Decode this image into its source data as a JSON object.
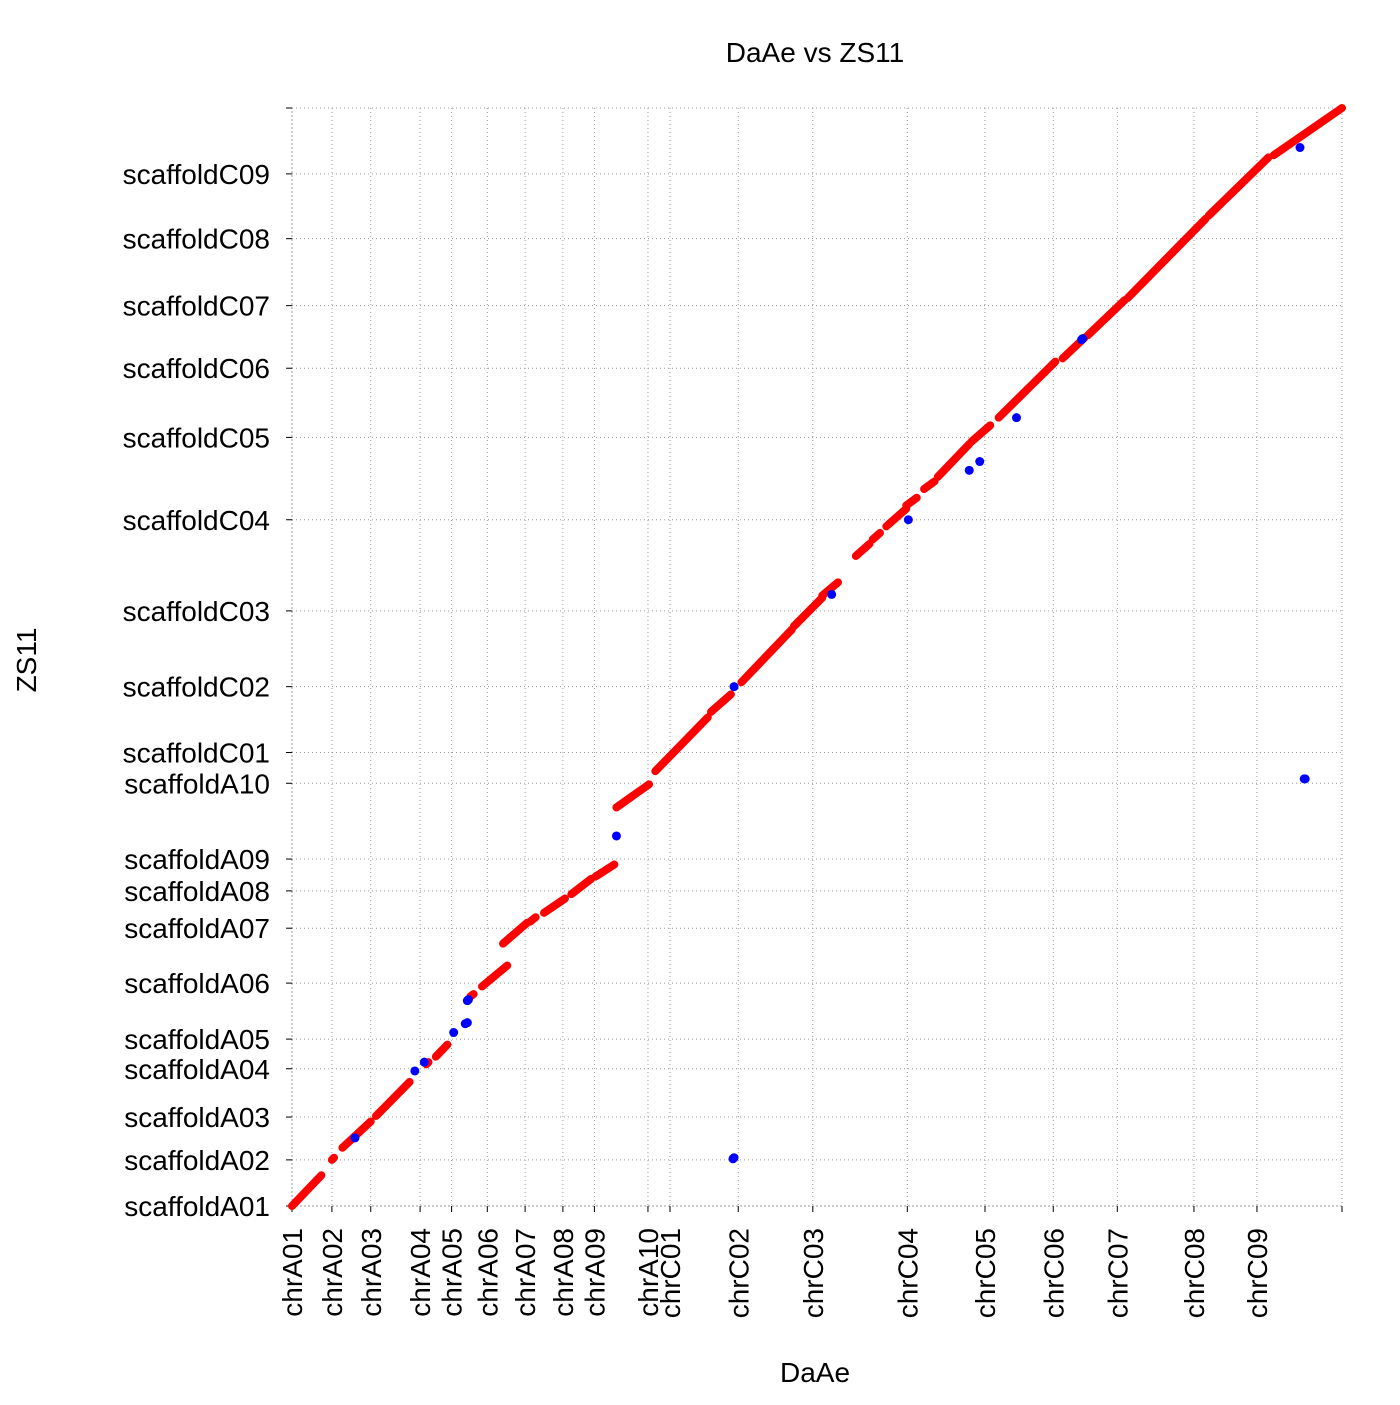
{
  "chart_data": {
    "type": "scatter",
    "title": "DaAe vs ZS11",
    "xlabel": "DaAe",
    "ylabel": "ZS11",
    "xlim": [
      0,
      1000
    ],
    "ylim": [
      0,
      1000
    ],
    "grid": true,
    "legend": "none",
    "colors": {
      "forward": "#ff0000",
      "reverse": "#0000ff"
    },
    "x_ticks": [
      {
        "label": "chrA01",
        "value": 0
      },
      {
        "label": "chrA02",
        "value": 38
      },
      {
        "label": "chrA03",
        "value": 75
      },
      {
        "label": "chrA04",
        "value": 122
      },
      {
        "label": "chrA05",
        "value": 152
      },
      {
        "label": "chrA06",
        "value": 186
      },
      {
        "label": "chrA07",
        "value": 222
      },
      {
        "label": "chrA08",
        "value": 258
      },
      {
        "label": "chrA09",
        "value": 288
      },
      {
        "label": "chrA10",
        "value": 339
      },
      {
        "label": "chrC01",
        "value": 360
      },
      {
        "label": "chrC02",
        "value": 425
      },
      {
        "label": "chrC03",
        "value": 496
      },
      {
        "label": "chrC04",
        "value": 586
      },
      {
        "label": "chrC05",
        "value": 660
      },
      {
        "label": "chrC06",
        "value": 725
      },
      {
        "label": "chrC07",
        "value": 786
      },
      {
        "label": "chrC08",
        "value": 859
      },
      {
        "label": "chrC09",
        "value": 919
      }
    ],
    "y_ticks": [
      {
        "label": "scaffoldA01",
        "value": 0
      },
      {
        "label": "scaffoldA02",
        "value": 42
      },
      {
        "label": "scaffoldA03",
        "value": 81
      },
      {
        "label": "scaffoldA04",
        "value": 125
      },
      {
        "label": "scaffoldA05",
        "value": 152
      },
      {
        "label": "scaffoldA06",
        "value": 203
      },
      {
        "label": "scaffoldA07",
        "value": 253
      },
      {
        "label": "scaffoldA08",
        "value": 287
      },
      {
        "label": "scaffoldA09",
        "value": 316
      },
      {
        "label": "scaffoldA10",
        "value": 385
      },
      {
        "label": "scaffoldC01",
        "value": 413
      },
      {
        "label": "scaffoldC02",
        "value": 473
      },
      {
        "label": "scaffoldC03",
        "value": 542
      },
      {
        "label": "scaffoldC04",
        "value": 625
      },
      {
        "label": "scaffoldC05",
        "value": 700
      },
      {
        "label": "scaffoldC06",
        "value": 763
      },
      {
        "label": "scaffoldC07",
        "value": 820
      },
      {
        "label": "scaffoldC08",
        "value": 881
      },
      {
        "label": "scaffoldC09",
        "value": 940
      }
    ],
    "series": [
      {
        "color": "#ff0000",
        "segments": [
          [
            [
              0,
              0
            ],
            [
              28,
              28
            ]
          ],
          [
            [
              38,
              42
            ],
            [
              40,
              44
            ]
          ],
          [
            [
              48,
              53
            ],
            [
              75,
              77
            ]
          ],
          [
            [
              80,
              82
            ],
            [
              112,
              113
            ]
          ],
          [
            [
              128,
              129
            ],
            [
              130,
              131
            ]
          ],
          [
            [
              137,
              136
            ],
            [
              148,
              147
            ]
          ],
          [
            [
              170,
              191
            ],
            [
              173,
              193
            ]
          ],
          [
            [
              181,
              200
            ],
            [
              205,
              219
            ]
          ],
          [
            [
              201,
              239
            ],
            [
              224,
              258
            ]
          ],
          [
            [
              227,
              259
            ],
            [
              232,
              263
            ]
          ],
          [
            [
              240,
              267
            ],
            [
              260,
              280
            ]
          ],
          [
            [
              266,
              284
            ],
            [
              285,
              298
            ]
          ],
          [
            [
              289,
              300
            ],
            [
              307,
              311
            ]
          ],
          [
            [
              309,
              363
            ],
            [
              340,
              384
            ]
          ],
          [
            [
              346,
              396
            ],
            [
              396,
              445
            ]
          ],
          [
            [
              399,
              450
            ],
            [
              418,
              466
            ]
          ],
          [
            [
              428,
              477
            ],
            [
              476,
              525
            ]
          ],
          [
            [
              478,
              528
            ],
            [
              505,
              554
            ]
          ],
          [
            [
              505,
              556
            ],
            [
              520,
              568
            ]
          ],
          [
            [
              537,
              592
            ],
            [
              550,
              603
            ]
          ],
          [
            [
              553,
              607
            ],
            [
              560,
              613
            ]
          ],
          [
            [
              566,
              619
            ],
            [
              585,
              635
            ]
          ],
          [
            [
              585,
              638
            ],
            [
              595,
              645
            ]
          ],
          [
            [
              602,
              653
            ],
            [
              612,
              660
            ]
          ],
          [
            [
              615,
              664
            ],
            [
              645,
              694
            ]
          ],
          [
            [
              647,
              696
            ],
            [
              665,
              711
            ]
          ],
          [
            [
              673,
              718
            ],
            [
              727,
              769
            ]
          ],
          [
            [
              734,
              772
            ],
            [
              755,
              791
            ]
          ],
          [
            [
              758,
              793
            ],
            [
              793,
              825
            ]
          ],
          [
            [
              796,
              827
            ],
            [
              870,
              899
            ]
          ],
          [
            [
              873,
              902
            ],
            [
              930,
              955
            ]
          ],
          [
            [
              935,
              957
            ],
            [
              1000,
              1000
            ]
          ]
        ]
      },
      {
        "color": "#0000ff",
        "points": [
          [
            60,
            62
          ],
          [
            117,
            123
          ],
          [
            126,
            131
          ],
          [
            154,
            158
          ],
          [
            165,
            166
          ],
          [
            167,
            167
          ],
          [
            167,
            187
          ],
          [
            168,
            188
          ],
          [
            309,
            337
          ],
          [
            420,
            43
          ],
          [
            421,
            44
          ],
          [
            421,
            473
          ],
          [
            514,
            557
          ],
          [
            587,
            625
          ],
          [
            645,
            670
          ],
          [
            655,
            678
          ],
          [
            690,
            718
          ],
          [
            752,
            789
          ],
          [
            753,
            790
          ],
          [
            964,
            389
          ],
          [
            965,
            389
          ],
          [
            960,
            964
          ]
        ]
      }
    ]
  }
}
